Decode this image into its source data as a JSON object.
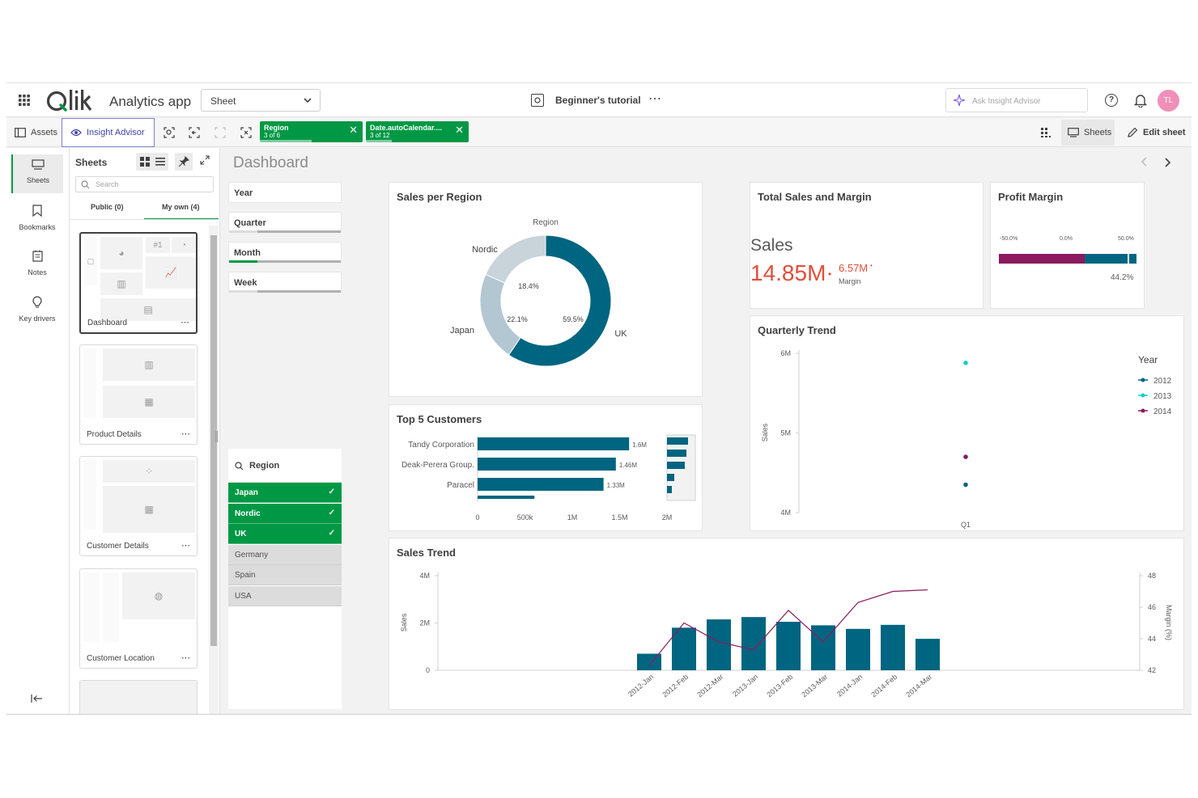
{
  "header": {
    "app_name": "Analytics app",
    "sheet_select": "Sheet",
    "tutorial": "Beginner's tutorial",
    "ask_placeholder": "Ask Insight Advisor",
    "avatar": "TL"
  },
  "toolbar": {
    "assets": "Assets",
    "insight_advisor": "Insight Advisor",
    "chips": [
      {
        "label": "Region",
        "sub": "3 of 6"
      },
      {
        "label": "Date.autoCalendar....",
        "sub": "3 of 12"
      }
    ],
    "sheets": "Sheets",
    "edit_sheet": "Edit sheet"
  },
  "rail": {
    "items": [
      {
        "label": "Sheets"
      },
      {
        "label": "Bookmarks"
      },
      {
        "label": "Notes"
      },
      {
        "label": "Key drivers"
      }
    ]
  },
  "sheet_panel": {
    "title": "Sheets",
    "search_placeholder": "Search",
    "tabs": [
      "Public (0)",
      "My own (4)"
    ],
    "sheets": [
      "Dashboard",
      "Product Details",
      "Customer Details",
      "Customer Location"
    ]
  },
  "dashboard": {
    "title": "Dashboard",
    "filters": [
      {
        "label": "Year",
        "fill": 0
      },
      {
        "label": "Quarter",
        "fill": 0.25
      },
      {
        "label": "Month",
        "fill": 0.25
      },
      {
        "label": "Week",
        "fill": 0.25
      }
    ],
    "region_filter": {
      "label": "Region",
      "selected": [
        "Japan",
        "Nordic",
        "UK"
      ],
      "excluded": [
        "Germany",
        "Spain",
        "USA"
      ]
    }
  },
  "sales_per_region": {
    "title": "Sales per Region",
    "legend_title": "Region"
  },
  "total_sales": {
    "title": "Total Sales and Margin",
    "label": "Sales",
    "value": "14.85M",
    "margin_value": "6.57M",
    "margin_label": "Margin",
    "color": "#e04e39"
  },
  "profit_margin": {
    "title": "Profit Margin",
    "ticks": [
      "-50.0%",
      "0.0%",
      "50.0%"
    ],
    "value_label": "44.2%"
  },
  "quarterly_trend": {
    "title": "Quarterly Trend"
  },
  "top_customers": {
    "title": "Top 5 Customers"
  },
  "sales_trend": {
    "title": "Sales Trend"
  },
  "chart_data": [
    {
      "type": "pie",
      "title": "Sales per Region",
      "legend_title": "Region",
      "categories": [
        "UK",
        "Japan",
        "Nordic"
      ],
      "values": [
        59.5,
        22.1,
        18.4
      ],
      "labels": [
        "59.5%",
        "22.1%",
        "18.4%"
      ],
      "colors": [
        "#006580",
        "#b3c7d2",
        "#c8d3da"
      ]
    },
    {
      "type": "bar",
      "title": "Top 5 Customers",
      "orientation": "horizontal",
      "categories": [
        "Tandy Corporation",
        "Deak-Perera Group.",
        "Paracel"
      ],
      "values": [
        1600000,
        1460000,
        1330000
      ],
      "labels": [
        "1.6M",
        "1.46M",
        "1.33M"
      ],
      "x_ticks": [
        "0",
        "500k",
        "1M",
        "1.5M",
        "2M"
      ],
      "xlim": [
        0,
        2000000
      ],
      "color": "#006580"
    },
    {
      "type": "scatter",
      "title": "Quarterly Trend",
      "ylabel": "Sales",
      "categories": [
        "Q1"
      ],
      "y_ticks": [
        "4M",
        "5M",
        "6M"
      ],
      "ylim": [
        4000000,
        6000000
      ],
      "legend_title": "Year",
      "series": [
        {
          "name": "2012",
          "values": [
            4350000
          ],
          "color": "#006580"
        },
        {
          "name": "2013",
          "values": [
            5880000
          ],
          "color": "#10cfc9"
        },
        {
          "name": "2014",
          "values": [
            4700000
          ],
          "color": "#8b1a5e"
        }
      ]
    },
    {
      "type": "bar",
      "title": "Sales Trend",
      "ylabel": "Sales",
      "y2label": "Margin (%)",
      "categories": [
        "2012-Jan",
        "2012-Feb",
        "2012-Mar",
        "2013-Jan",
        "2013-Feb",
        "2013-Mar",
        "2014-Jan",
        "2014-Feb",
        "2014-Mar"
      ],
      "y_ticks": [
        "0",
        "2M",
        "4M"
      ],
      "ylim": [
        0,
        4000000
      ],
      "y2_ticks": [
        "42",
        "44",
        "46",
        "48"
      ],
      "y2lim": [
        42,
        48
      ],
      "series": [
        {
          "name": "Sales",
          "type": "bar",
          "values": [
            700000,
            1800000,
            2150000,
            2250000,
            2050000,
            1900000,
            1750000,
            1920000,
            1330000
          ],
          "color": "#006580"
        },
        {
          "name": "Margin",
          "type": "line",
          "values": [
            42.3,
            45.0,
            43.8,
            43.3,
            45.8,
            43.8,
            46.3,
            47.0,
            47.1
          ],
          "color": "#8b1a5e"
        }
      ]
    }
  ]
}
